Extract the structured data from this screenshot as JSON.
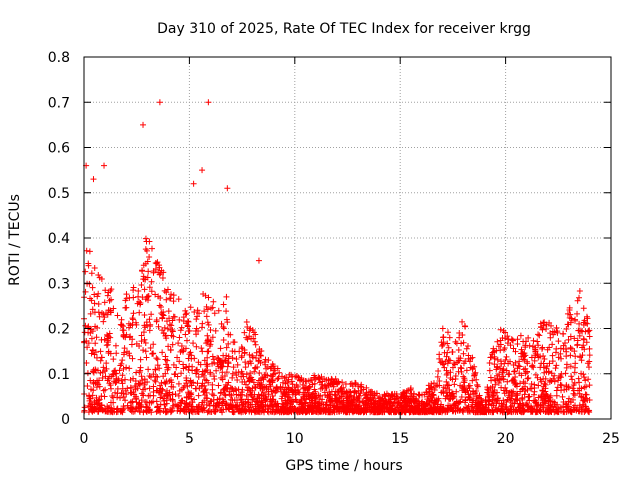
{
  "chart_data": {
    "type": "scatter",
    "title": "Day 310 of 2025, Rate Of TEC Index for receiver krgg",
    "xlabel": "GPS time / hours",
    "ylabel": "ROTI / TECUs",
    "xlim": [
      0,
      25
    ],
    "ylim": [
      0,
      0.8
    ],
    "xticks": [
      0,
      5,
      10,
      15,
      20,
      25
    ],
    "yticks": [
      0,
      0.1,
      0.2,
      0.3,
      0.4,
      0.5,
      0.6,
      0.7,
      0.8
    ],
    "grid": true,
    "marker": "plus",
    "color": "#ff0000",
    "envelope": {
      "x": [
        0.0,
        0.25,
        0.5,
        0.75,
        1.0,
        1.25,
        1.5,
        1.75,
        2.0,
        2.25,
        2.5,
        2.75,
        3.0,
        3.25,
        3.5,
        3.75,
        4.0,
        4.25,
        4.5,
        4.75,
        5.0,
        5.25,
        5.5,
        5.75,
        6.0,
        6.25,
        6.5,
        6.75,
        7.0,
        7.25,
        7.5,
        7.75,
        8.0,
        8.25,
        8.5,
        8.75,
        9.0,
        9.5,
        10.0,
        10.5,
        11.0,
        11.5,
        12.0,
        12.5,
        13.0,
        13.5,
        14.0,
        14.5,
        15.0,
        15.5,
        16.0,
        16.5,
        16.75,
        17.0,
        17.25,
        17.5,
        17.75,
        18.0,
        18.25,
        18.5,
        19.0,
        19.25,
        19.5,
        19.75,
        20.0,
        20.25,
        20.5,
        20.75,
        21.0,
        21.25,
        21.5,
        21.75,
        22.0,
        22.25,
        22.5,
        22.75,
        23.0,
        23.25,
        23.5,
        23.75,
        24.0
      ],
      "y": [
        0.4,
        0.38,
        0.35,
        0.33,
        0.3,
        0.32,
        0.25,
        0.22,
        0.28,
        0.3,
        0.3,
        0.35,
        0.42,
        0.38,
        0.35,
        0.33,
        0.3,
        0.28,
        0.27,
        0.25,
        0.25,
        0.24,
        0.25,
        0.3,
        0.28,
        0.25,
        0.24,
        0.28,
        0.22,
        0.18,
        0.17,
        0.22,
        0.2,
        0.18,
        0.14,
        0.13,
        0.12,
        0.1,
        0.1,
        0.09,
        0.1,
        0.09,
        0.09,
        0.08,
        0.08,
        0.07,
        0.06,
        0.06,
        0.06,
        0.07,
        0.06,
        0.08,
        0.1,
        0.22,
        0.2,
        0.16,
        0.2,
        0.22,
        0.18,
        0.12,
        0.02,
        0.15,
        0.18,
        0.2,
        0.2,
        0.18,
        0.17,
        0.2,
        0.18,
        0.2,
        0.2,
        0.22,
        0.22,
        0.2,
        0.22,
        0.22,
        0.25,
        0.25,
        0.3,
        0.25,
        0.2
      ]
    },
    "outliers": {
      "x": [
        0.1,
        0.45,
        0.95,
        2.8,
        3.6,
        5.2,
        5.6,
        5.9,
        6.8,
        8.3
      ],
      "y": [
        0.56,
        0.53,
        0.56,
        0.65,
        0.7,
        0.52,
        0.55,
        0.7,
        0.51,
        0.35
      ]
    }
  }
}
